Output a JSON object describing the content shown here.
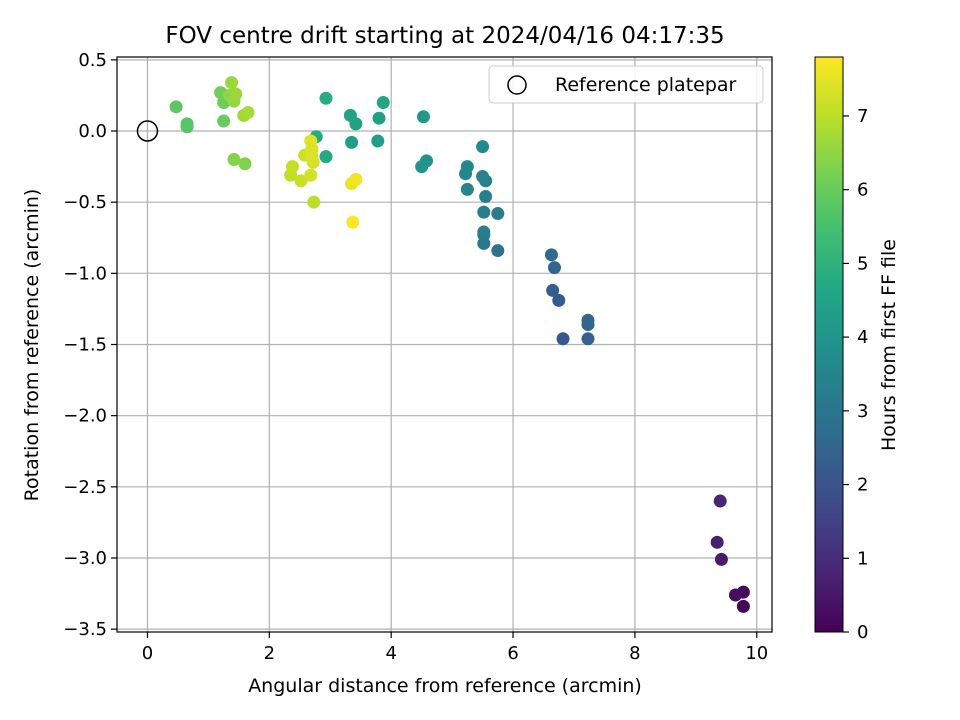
{
  "chart_data": {
    "type": "scatter",
    "title": "FOV centre drift starting at 2024/04/16 04:17:35",
    "xlabel": "Angular distance from reference (arcmin)",
    "ylabel": "Rotation from reference (arcmin)",
    "xlim": [
      -0.5,
      10.25
    ],
    "ylim": [
      -3.52,
      0.52
    ],
    "xticks": [
      0,
      2,
      4,
      6,
      8,
      10
    ],
    "xtick_labels": [
      "0",
      "2",
      "4",
      "6",
      "8",
      "10"
    ],
    "yticks": [
      0.5,
      0.0,
      -0.5,
      -1.0,
      -1.5,
      -2.0,
      -2.5,
      -3.0,
      -3.5
    ],
    "ytick_labels": [
      "0.5",
      "0.0",
      "−0.5",
      "−1.0",
      "−1.5",
      "−2.0",
      "−2.5",
      "−3.0",
      "−3.5"
    ],
    "grid": true,
    "legend": {
      "position": "top-right",
      "entries": [
        "Reference platepar"
      ]
    },
    "reference_point": {
      "x": 0.0,
      "y": 0.0
    },
    "colorbar": {
      "label": "Hours from first FF file",
      "colormap": "viridis",
      "min": 0,
      "max": 7.8,
      "ticks": [
        0,
        1,
        2,
        3,
        4,
        5,
        6,
        7
      ],
      "tick_labels": [
        "0",
        "1",
        "2",
        "3",
        "4",
        "5",
        "6",
        "7"
      ]
    },
    "points": [
      {
        "x": 9.78,
        "y": -3.34,
        "t": 0.1
      },
      {
        "x": 9.78,
        "y": -3.24,
        "t": 0.2
      },
      {
        "x": 9.65,
        "y": -3.26,
        "t": 0.3
      },
      {
        "x": 9.42,
        "y": -3.01,
        "t": 0.6
      },
      {
        "x": 9.35,
        "y": -2.89,
        "t": 0.7
      },
      {
        "x": 9.4,
        "y": -2.6,
        "t": 0.8
      },
      {
        "x": 6.82,
        "y": -1.46,
        "t": 2.1
      },
      {
        "x": 6.75,
        "y": -1.19,
        "t": 2.2
      },
      {
        "x": 6.65,
        "y": -1.12,
        "t": 2.3
      },
      {
        "x": 7.23,
        "y": -1.46,
        "t": 2.4
      },
      {
        "x": 7.23,
        "y": -1.36,
        "t": 2.5
      },
      {
        "x": 7.23,
        "y": -1.33,
        "t": 2.55
      },
      {
        "x": 6.68,
        "y": -0.96,
        "t": 2.6
      },
      {
        "x": 6.63,
        "y": -0.87,
        "t": 2.7
      },
      {
        "x": 5.75,
        "y": -0.84,
        "t": 3.0
      },
      {
        "x": 5.52,
        "y": -0.79,
        "t": 3.1
      },
      {
        "x": 5.52,
        "y": -0.73,
        "t": 3.15
      },
      {
        "x": 5.52,
        "y": -0.71,
        "t": 3.2
      },
      {
        "x": 5.75,
        "y": -0.58,
        "t": 3.25
      },
      {
        "x": 5.52,
        "y": -0.57,
        "t": 3.3
      },
      {
        "x": 5.55,
        "y": -0.46,
        "t": 3.35
      },
      {
        "x": 5.55,
        "y": -0.35,
        "t": 3.4
      },
      {
        "x": 5.5,
        "y": -0.32,
        "t": 3.45
      },
      {
        "x": 5.25,
        "y": -0.41,
        "t": 3.5
      },
      {
        "x": 5.22,
        "y": -0.3,
        "t": 3.55
      },
      {
        "x": 5.25,
        "y": -0.25,
        "t": 3.6
      },
      {
        "x": 5.5,
        "y": -0.11,
        "t": 3.65
      },
      {
        "x": 4.5,
        "y": -0.25,
        "t": 4.0
      },
      {
        "x": 4.58,
        "y": -0.21,
        "t": 4.05
      },
      {
        "x": 4.53,
        "y": 0.1,
        "t": 4.1
      },
      {
        "x": 3.78,
        "y": -0.07,
        "t": 4.3
      },
      {
        "x": 3.35,
        "y": -0.08,
        "t": 4.35
      },
      {
        "x": 3.8,
        "y": 0.09,
        "t": 4.4
      },
      {
        "x": 3.42,
        "y": 0.05,
        "t": 4.45
      },
      {
        "x": 3.33,
        "y": 0.11,
        "t": 4.5
      },
      {
        "x": 3.87,
        "y": 0.2,
        "t": 4.55
      },
      {
        "x": 2.93,
        "y": -0.18,
        "t": 4.7
      },
      {
        "x": 2.77,
        "y": -0.04,
        "t": 4.75
      },
      {
        "x": 2.93,
        "y": 0.23,
        "t": 4.8
      },
      {
        "x": 0.65,
        "y": 0.03,
        "t": 5.7
      },
      {
        "x": 0.65,
        "y": 0.05,
        "t": 5.75
      },
      {
        "x": 0.47,
        "y": 0.17,
        "t": 5.8
      },
      {
        "x": 1.25,
        "y": 0.07,
        "t": 6.0
      },
      {
        "x": 1.25,
        "y": 0.2,
        "t": 6.05
      },
      {
        "x": 1.2,
        "y": 0.27,
        "t": 6.1
      },
      {
        "x": 1.6,
        "y": -0.23,
        "t": 6.3
      },
      {
        "x": 1.42,
        "y": -0.2,
        "t": 6.35
      },
      {
        "x": 1.35,
        "y": 0.25,
        "t": 6.5
      },
      {
        "x": 1.42,
        "y": 0.21,
        "t": 6.55
      },
      {
        "x": 1.45,
        "y": 0.26,
        "t": 6.6
      },
      {
        "x": 1.38,
        "y": 0.34,
        "t": 6.65
      },
      {
        "x": 1.58,
        "y": 0.11,
        "t": 6.7
      },
      {
        "x": 1.65,
        "y": 0.13,
        "t": 6.75
      },
      {
        "x": 2.73,
        "y": -0.5,
        "t": 7.0
      },
      {
        "x": 2.35,
        "y": -0.31,
        "t": 7.05
      },
      {
        "x": 2.38,
        "y": -0.25,
        "t": 7.1
      },
      {
        "x": 2.52,
        "y": -0.35,
        "t": 7.15
      },
      {
        "x": 2.58,
        "y": -0.17,
        "t": 7.2
      },
      {
        "x": 2.68,
        "y": -0.31,
        "t": 7.25
      },
      {
        "x": 2.72,
        "y": -0.22,
        "t": 7.3
      },
      {
        "x": 2.7,
        "y": -0.18,
        "t": 7.35
      },
      {
        "x": 2.7,
        "y": -0.13,
        "t": 7.4
      },
      {
        "x": 2.68,
        "y": -0.07,
        "t": 7.45
      },
      {
        "x": 3.35,
        "y": -0.37,
        "t": 7.55
      },
      {
        "x": 3.42,
        "y": -0.34,
        "t": 7.65
      },
      {
        "x": 3.37,
        "y": -0.64,
        "t": 7.75
      }
    ]
  }
}
